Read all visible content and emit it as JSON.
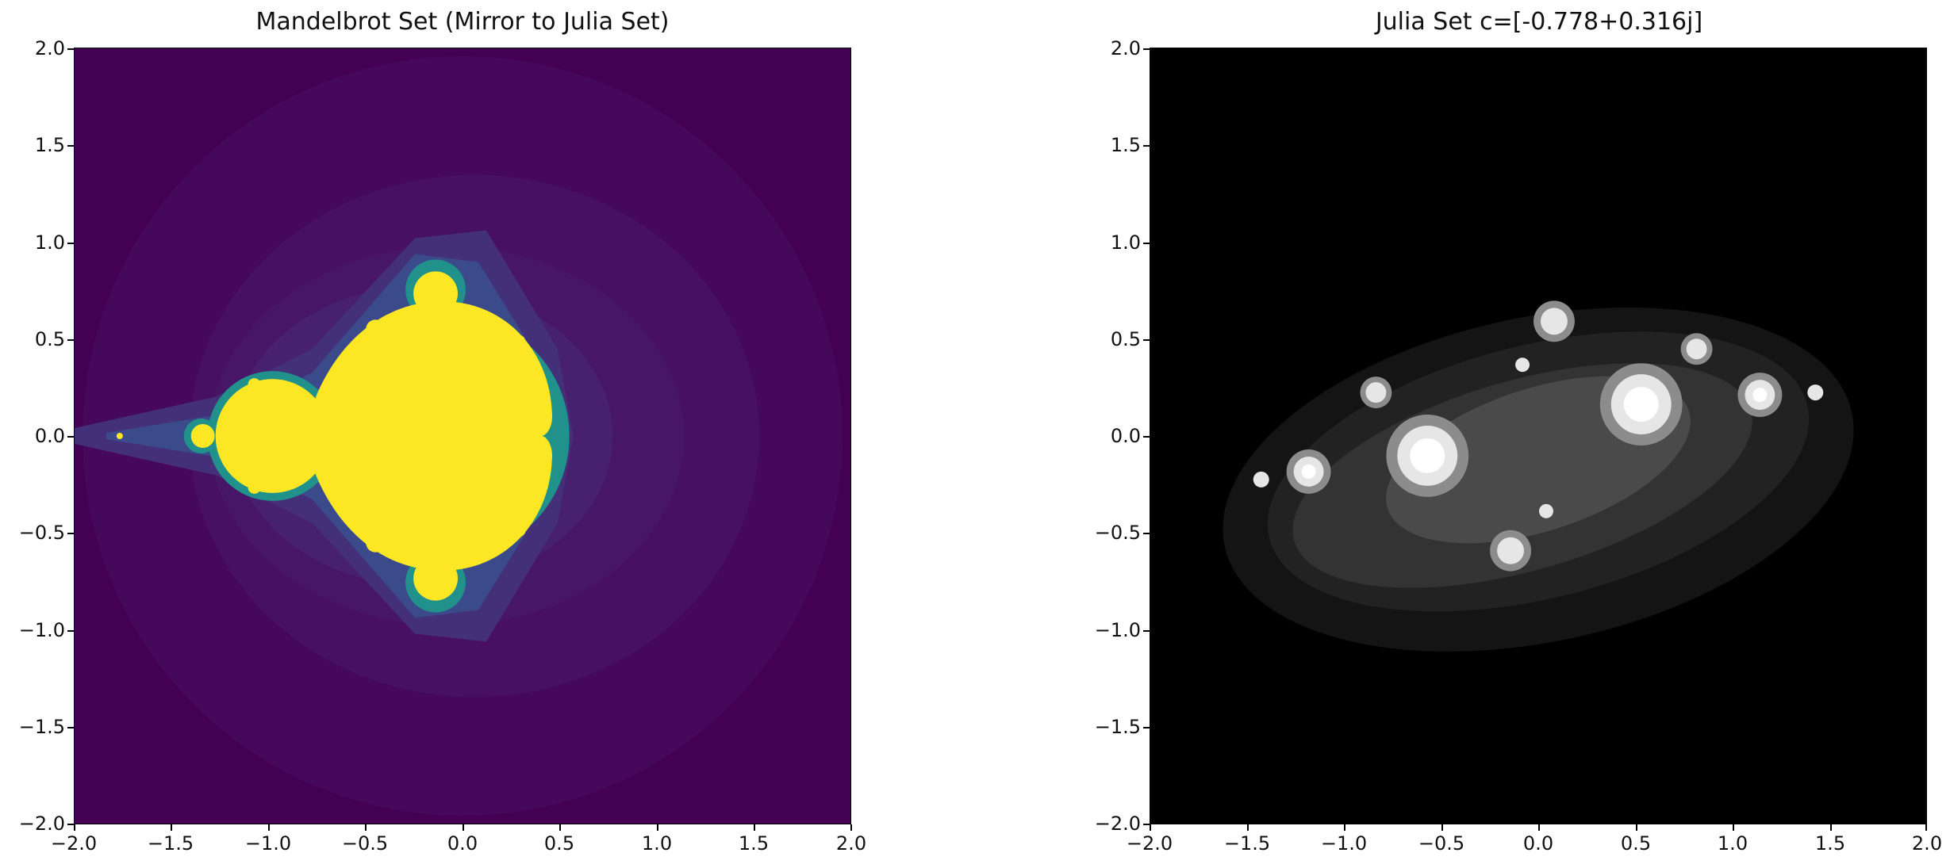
{
  "chart_data": [
    {
      "type": "heatmap",
      "title": "Mandelbrot Set (Mirror to Julia Set)",
      "xlabel": "",
      "ylabel": "",
      "xlim": [
        -2.0,
        2.0
      ],
      "ylim": [
        -2.0,
        2.0
      ],
      "x_ticks": [
        "−2.0",
        "−1.5",
        "−1.0",
        "−0.5",
        "0.0",
        "0.5",
        "1.0",
        "1.5",
        "2.0"
      ],
      "y_ticks": [
        "2.0",
        "1.5",
        "1.0",
        "0.5",
        "0.0",
        "−0.5",
        "−1.0",
        "−1.5",
        "−2.0"
      ],
      "colormap": "viridis",
      "colors": {
        "background": "#440154",
        "set_fill": "#fde725",
        "edge": "#21918c"
      },
      "grid": false
    },
    {
      "type": "heatmap",
      "title": "Julia Set c=[-0.778+0.316j]",
      "xlabel": "",
      "ylabel": "",
      "xlim": [
        -2.0,
        2.0
      ],
      "ylim": [
        -2.0,
        2.0
      ],
      "x_ticks": [
        "−2.0",
        "−1.5",
        "−1.0",
        "−0.5",
        "0.0",
        "0.5",
        "1.0",
        "1.5",
        "2.0"
      ],
      "y_ticks": [
        "2.0",
        "1.5",
        "1.0",
        "0.5",
        "0.0",
        "−0.5",
        "−1.0",
        "−1.5",
        "−2.0"
      ],
      "colormap": "gray",
      "colors": {
        "background": "#000000",
        "fill": "#ffffff"
      },
      "grid": false
    }
  ]
}
